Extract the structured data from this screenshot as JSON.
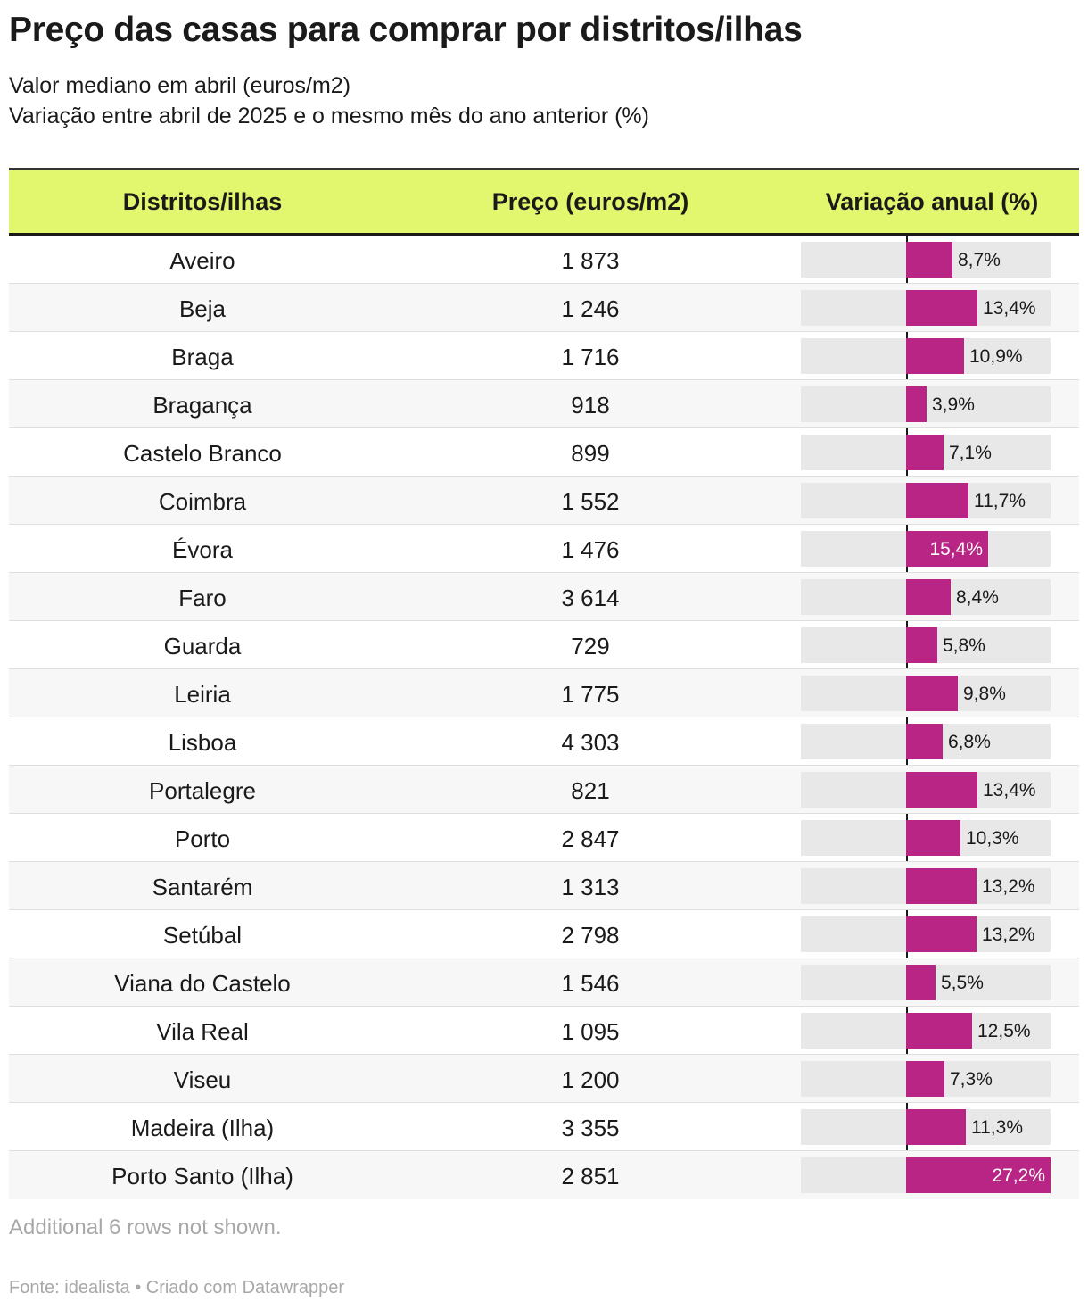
{
  "title": "Preço das casas para comprar por distritos/ilhas",
  "subtitle_line1": "Valor mediano em abril (euros/m2)",
  "subtitle_line2": "Variação entre abril de 2025 e o mesmo mês do ano anterior (%)",
  "columns": [
    "Distritos/ilhas",
    "Preço (euros/m2)",
    "Variação anual (%)"
  ],
  "note": "Additional 6 rows not shown.",
  "footer": "Fonte: idealista • Criado com Datawrapper",
  "colors": {
    "header_bg": "#e2f66e",
    "bar": "#b82585",
    "bar_track": "#e8e8e8"
  },
  "chart_data": {
    "type": "table",
    "bar_column": "Variação anual (%)",
    "bar_max": 27.2,
    "rows": [
      {
        "district": "Aveiro",
        "price": "1 873",
        "variation": 8.7,
        "variation_label": "8,7%"
      },
      {
        "district": "Beja",
        "price": "1 246",
        "variation": 13.4,
        "variation_label": "13,4%"
      },
      {
        "district": "Braga",
        "price": "1 716",
        "variation": 10.9,
        "variation_label": "10,9%"
      },
      {
        "district": "Bragança",
        "price": "918",
        "variation": 3.9,
        "variation_label": "3,9%"
      },
      {
        "district": "Castelo Branco",
        "price": "899",
        "variation": 7.1,
        "variation_label": "7,1%"
      },
      {
        "district": "Coimbra",
        "price": "1 552",
        "variation": 11.7,
        "variation_label": "11,7%"
      },
      {
        "district": "Évora",
        "price": "1 476",
        "variation": 15.4,
        "variation_label": "15,4%"
      },
      {
        "district": "Faro",
        "price": "3 614",
        "variation": 8.4,
        "variation_label": "8,4%"
      },
      {
        "district": "Guarda",
        "price": "729",
        "variation": 5.8,
        "variation_label": "5,8%"
      },
      {
        "district": "Leiria",
        "price": "1 775",
        "variation": 9.8,
        "variation_label": "9,8%"
      },
      {
        "district": "Lisboa",
        "price": "4 303",
        "variation": 6.8,
        "variation_label": "6,8%"
      },
      {
        "district": "Portalegre",
        "price": "821",
        "variation": 13.4,
        "variation_label": "13,4%"
      },
      {
        "district": "Porto",
        "price": "2 847",
        "variation": 10.3,
        "variation_label": "10,3%"
      },
      {
        "district": "Santarém",
        "price": "1 313",
        "variation": 13.2,
        "variation_label": "13,2%"
      },
      {
        "district": "Setúbal",
        "price": "2 798",
        "variation": 13.2,
        "variation_label": "13,2%"
      },
      {
        "district": "Viana do Castelo",
        "price": "1 546",
        "variation": 5.5,
        "variation_label": "5,5%"
      },
      {
        "district": "Vila Real",
        "price": "1 095",
        "variation": 12.5,
        "variation_label": "12,5%"
      },
      {
        "district": "Viseu",
        "price": "1 200",
        "variation": 7.3,
        "variation_label": "7,3%"
      },
      {
        "district": "Madeira (Ilha)",
        "price": "3 355",
        "variation": 11.3,
        "variation_label": "11,3%"
      },
      {
        "district": "Porto Santo (Ilha)",
        "price": "2 851",
        "variation": 27.2,
        "variation_label": "27,2%"
      }
    ]
  }
}
